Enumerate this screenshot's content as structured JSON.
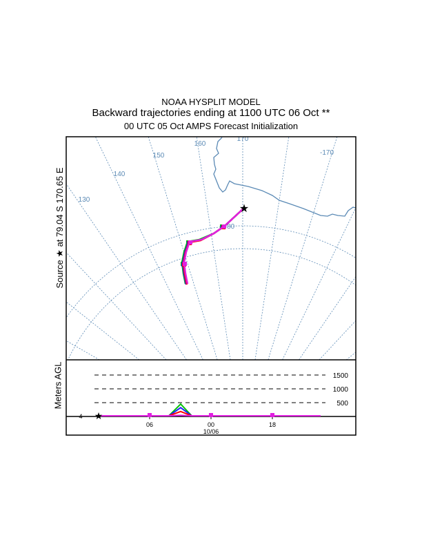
{
  "title": {
    "line1": "NOAA HYSPLIT MODEL",
    "line2": "Backward trajectories ending at 1100 UTC 06 Oct **",
    "line3": "00 UTC 05 Oct    AMPS  Forecast Initialization"
  },
  "map": {
    "source_label": "Source ★ at  79.04 S  170.65 E",
    "meridian_labels": [
      "130",
      "140",
      "150",
      "160",
      "170",
      "-170"
    ],
    "latitude_label": "-80",
    "grid_color": "#5b8ab5"
  },
  "chart_data": {
    "type": "line",
    "title": "Backward trajectories ending at 1100 UTC 06 Oct",
    "ylabel": "Meters AGL",
    "y_ticks": [
      "1500",
      "1000",
      "500"
    ],
    "y_values": [
      1500,
      1000,
      500
    ],
    "ylim": [
      0,
      1800
    ],
    "x_ticks": [
      "06",
      "00",
      "18"
    ],
    "x_date_label": "10/06",
    "start_height_label": "4",
    "series": [
      {
        "name": "traj-green",
        "color": "#00c000",
        "peak_m": 450
      },
      {
        "name": "traj-blue",
        "color": "#2020ff",
        "peak_m": 320
      },
      {
        "name": "traj-red",
        "color": "#ff0000",
        "peak_m": 180
      },
      {
        "name": "traj-magenta",
        "color": "#e020e0",
        "peak_m": 40
      }
    ]
  }
}
